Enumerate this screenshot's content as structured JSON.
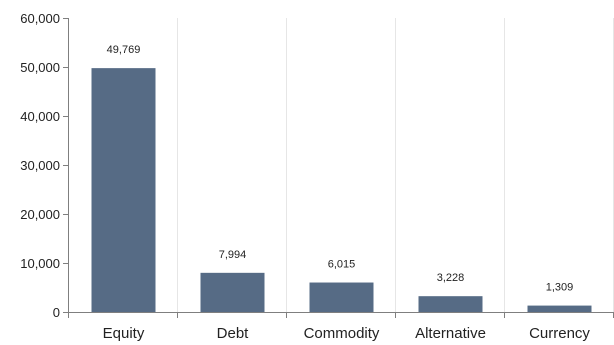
{
  "chart_data": {
    "type": "bar",
    "title": "",
    "xlabel": "",
    "ylabel": "",
    "categories": [
      "Equity",
      "Debt",
      "Commodity",
      "Alternative",
      "Currency"
    ],
    "values": [
      49769,
      7994,
      6015,
      3228,
      1309
    ],
    "value_labels": [
      "49,769",
      "7,994",
      "6,015",
      "3,228",
      "1,309"
    ],
    "ylim": [
      0,
      60000
    ],
    "yticks": [
      0,
      10000,
      20000,
      30000,
      40000,
      50000,
      60000
    ],
    "ytick_labels": [
      "0",
      "10,000",
      "20,000",
      "30,000",
      "40,000",
      "50,000",
      "60,000"
    ],
    "grid": "vertical",
    "legend": "none",
    "bar_color": "#566b85",
    "grid_color": "#e6e6e6",
    "axis_color": "#7f7f7f"
  }
}
